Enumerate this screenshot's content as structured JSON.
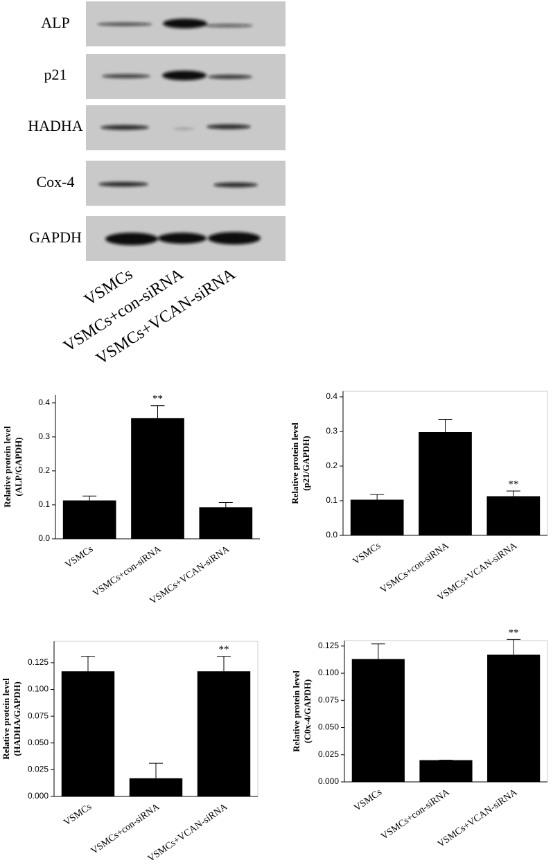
{
  "blot": {
    "rows": [
      "ALP",
      "p21",
      "HADHA",
      "Cox-4",
      "GAPDH"
    ],
    "lanes": [
      "VSMCs",
      "VSMCs+con-siRNA",
      "VSMCs+VCAN-siRNA"
    ]
  },
  "chart_data": [
    {
      "type": "bar",
      "ylabel": [
        "Relative protein level",
        "(ALP/GAPDH)"
      ],
      "categories": [
        "VSMCs",
        "VSMCs+con-siRNA",
        "VSMCs+VCAN-siRNA"
      ],
      "values": [
        0.113,
        0.355,
        0.093
      ],
      "errors": [
        0.013,
        0.037,
        0.014
      ],
      "value_annotations": [
        null,
        "**",
        null
      ],
      "color": "#000000",
      "ylim": [
        0,
        0.424
      ],
      "yticks": [
        {
          "value": 0,
          "label": "0.0"
        },
        0.1,
        0.2,
        0.3,
        0.4
      ],
      "frame": false
    },
    {
      "type": "bar",
      "ylabel": [
        "Relative protein level",
        "(p21/GAPDH)"
      ],
      "categories": [
        "VSMCs",
        "VSMCs+con-siRNA",
        "VSMCs+VCAN-siRNA"
      ],
      "values": [
        0.103,
        0.298,
        0.113
      ],
      "errors": [
        0.015,
        0.037,
        0.015
      ],
      "value_annotations": [
        null,
        null,
        "**"
      ],
      "color": "#000000",
      "ylim": [
        0,
        0.416
      ],
      "yticks": [
        {
          "value": 0,
          "label": "0.0"
        },
        0.1,
        0.2,
        0.3,
        0.4
      ],
      "frame": true
    },
    {
      "type": "bar",
      "ylabel": [
        "Relative protein level",
        "(HADHA/GAPDH)"
      ],
      "categories": [
        "VSMCs",
        "VSMCs+con-siRNA",
        "VSMCs+VCAN-siRNA"
      ],
      "values": [
        0.117,
        0.017,
        0.117
      ],
      "errors": [
        0.014,
        0.014,
        0.014
      ],
      "value_annotations": [
        null,
        null,
        "**"
      ],
      "color": "#000000",
      "ylim": [
        0,
        0.145
      ],
      "yticks": [
        {
          "value": 0,
          "label": "0.000"
        },
        0.025,
        {
          "value": 0.05,
          "label": "0.050"
        },
        0.075,
        {
          "value": 0.1,
          "label": "0.100"
        },
        0.125
      ],
      "frame": true
    },
    {
      "type": "bar",
      "ylabel": [
        "Relative protein level",
        "(C0x-4/GAPDH)"
      ],
      "categories": [
        "VSMCs",
        "VSMCs+con-siRNA",
        "VSMCs+VCAN-siRNA"
      ],
      "values": [
        0.113,
        0.02,
        0.117
      ],
      "errors": [
        0.014,
        0,
        0.014
      ],
      "value_annotations": [
        null,
        null,
        "**"
      ],
      "color": "#000000",
      "ylim": [
        0,
        0.13
      ],
      "yticks": [
        {
          "value": 0,
          "label": "0.000"
        },
        0.025,
        {
          "value": 0.05,
          "label": "0.050"
        },
        0.075,
        {
          "value": 0.1,
          "label": "0.100"
        },
        0.125
      ],
      "frame": true
    }
  ]
}
